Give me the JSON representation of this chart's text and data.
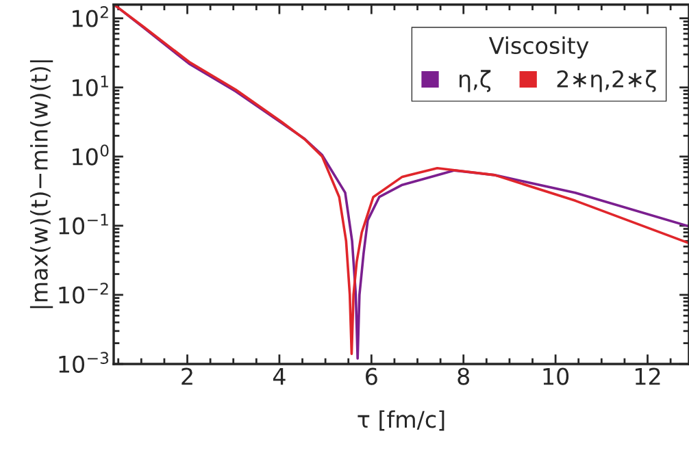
{
  "chart_data": {
    "type": "line",
    "xlabel": "τ [fm/c]",
    "ylabel": "|max(w)(t)−min(w)(t)|",
    "legend_title": "Viscosity",
    "legend": "top right",
    "log": "y",
    "grid": false,
    "marker": "none",
    "line_style": "solid",
    "xlim": [
      0.4,
      12.9
    ],
    "xticks": [
      2,
      4,
      6,
      8,
      10,
      12
    ],
    "ylim": [
      0.001,
      158
    ],
    "yticks": [
      {
        "value": 0.001,
        "label": "10$^{−3}$"
      },
      {
        "value": 0.01,
        "label": "10$^{−2}$"
      },
      {
        "value": 0.1,
        "label": "10$^{−1}$"
      },
      {
        "value": 1,
        "label": "10$^{0}$"
      },
      {
        "value": 10,
        "label": "10$^{1}$"
      },
      {
        "value": 100,
        "label": "10$^{2}$"
      }
    ],
    "series": [
      {
        "name": "η,ζ",
        "color": "#7b1f8f",
        "x": [
          0.45,
          1.04,
          2.04,
          3.05,
          4.04,
          4.55,
          4.93,
          5.43,
          5.58,
          5.66,
          5.7,
          5.74,
          5.83,
          5.92,
          6.17,
          6.67,
          7.8,
          8.68,
          10.43,
          12.9
        ],
        "values": [
          150,
          74,
          22,
          8.8,
          3.1,
          1.8,
          1.05,
          0.3,
          0.06,
          0.01,
          0.0012,
          0.01,
          0.04,
          0.12,
          0.26,
          0.39,
          0.63,
          0.54,
          0.3,
          0.098
        ]
      },
      {
        "name": "2∗η,2∗ζ",
        "color": "#e0262b",
        "x": [
          0.45,
          1.04,
          2.04,
          3.05,
          4.04,
          4.55,
          4.93,
          5.3,
          5.45,
          5.53,
          5.57,
          5.61,
          5.68,
          5.79,
          6.04,
          6.67,
          7.43,
          8.68,
          10.43,
          12.9
        ],
        "values": [
          150,
          76,
          23.4,
          9.3,
          3.2,
          1.78,
          1.0,
          0.26,
          0.06,
          0.01,
          0.0014,
          0.01,
          0.03,
          0.08,
          0.26,
          0.51,
          0.68,
          0.54,
          0.23,
          0.056
        ]
      }
    ]
  }
}
